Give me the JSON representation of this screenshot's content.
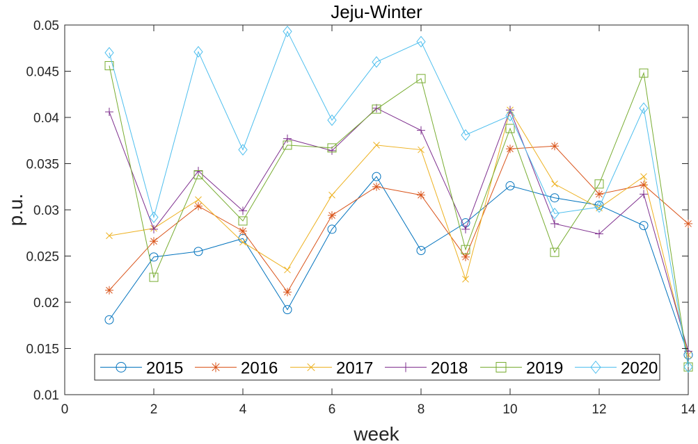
{
  "chart_data": {
    "type": "line",
    "title": "Jeju-Winter",
    "xlabel": "week",
    "ylabel": "p.u.",
    "xlim": [
      0,
      14
    ],
    "ylim": [
      0.01,
      0.05
    ],
    "x_ticks": [
      0,
      2,
      4,
      6,
      8,
      10,
      12,
      14
    ],
    "x_tick_labels": [
      "0",
      "2",
      "4",
      "6",
      "8",
      "10",
      "12",
      "14"
    ],
    "y_ticks": [
      0.01,
      0.015,
      0.02,
      0.025,
      0.03,
      0.035,
      0.04,
      0.045,
      0.05
    ],
    "y_tick_labels": [
      "0.01",
      "0.015",
      "0.02",
      "0.025",
      "0.03",
      "0.035",
      "0.04",
      "0.045",
      "0.05"
    ],
    "grid": false,
    "legend_placement": "bottom",
    "x": [
      1,
      2,
      3,
      4,
      5,
      6,
      7,
      8,
      9,
      10,
      11,
      12,
      13,
      14
    ],
    "series": [
      {
        "name": "2015",
        "color": "#0072BD",
        "marker": "circle",
        "values": [
          0.0181,
          0.0249,
          0.0255,
          0.0269,
          0.0192,
          0.0279,
          0.0336,
          0.0256,
          0.0286,
          0.0326,
          0.0313,
          0.0305,
          0.0283,
          0.0143
        ]
      },
      {
        "name": "2016",
        "color": "#D95319",
        "marker": "asterisk",
        "values": [
          0.0213,
          0.0266,
          0.0304,
          0.0277,
          0.0211,
          0.0294,
          0.0325,
          0.0316,
          0.0249,
          0.0366,
          0.0369,
          0.0317,
          0.0327,
          0.0285
        ]
      },
      {
        "name": "2017",
        "color": "#EDB120",
        "marker": "x",
        "values": [
          0.0272,
          0.028,
          0.0311,
          0.0265,
          0.0235,
          0.0316,
          0.037,
          0.0365,
          0.0225,
          0.0408,
          0.0328,
          0.0302,
          0.0336,
          0.0143
        ]
      },
      {
        "name": "2018",
        "color": "#7E2F8E",
        "marker": "plus",
        "values": [
          0.0406,
          0.0279,
          0.0342,
          0.0299,
          0.0377,
          0.0364,
          0.041,
          0.0386,
          0.0279,
          0.0408,
          0.0285,
          0.0274,
          0.0317,
          0.0147
        ]
      },
      {
        "name": "2019",
        "color": "#77AC30",
        "marker": "square",
        "values": [
          0.0456,
          0.0227,
          0.0338,
          0.0288,
          0.037,
          0.0367,
          0.0409,
          0.0442,
          0.0257,
          0.0388,
          0.0254,
          0.0328,
          0.0448,
          0.013
        ]
      },
      {
        "name": "2020",
        "color": "#4DBEEE",
        "marker": "diamond",
        "values": [
          0.047,
          0.0292,
          0.0471,
          0.0365,
          0.0493,
          0.0397,
          0.046,
          0.0482,
          0.0381,
          0.0402,
          0.0296,
          0.0303,
          0.041,
          0.013
        ]
      }
    ]
  }
}
